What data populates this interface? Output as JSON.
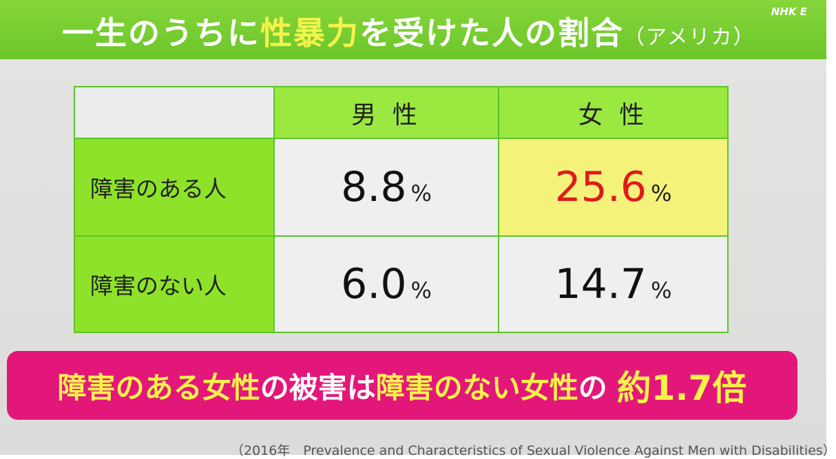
{
  "header": {
    "title": [
      {
        "text": "一生のうちに",
        "tone": "white"
      },
      {
        "text": "性暴力",
        "tone": "yellow"
      },
      {
        "text": "を受けた人の割合",
        "tone": "white"
      },
      {
        "text": "（アメリカ）",
        "tone": "small"
      }
    ],
    "logo": "NHK E"
  },
  "table": {
    "columns": [
      "男 性",
      "女 性"
    ],
    "rows": [
      {
        "label": "障害のある人",
        "cells": [
          {
            "value": "8.8",
            "unit": "%",
            "highlight": false
          },
          {
            "value": "25.6",
            "unit": "%",
            "highlight": true
          }
        ]
      },
      {
        "label": "障害のない人",
        "cells": [
          {
            "value": "6.0",
            "unit": "%",
            "highlight": false
          },
          {
            "value": "14.7",
            "unit": "%",
            "highlight": false
          }
        ]
      }
    ]
  },
  "banner": [
    {
      "text": "障害のある女性",
      "tone": "yellow"
    },
    {
      "text": "の被害は",
      "tone": "white"
    },
    {
      "text": "障害のない女性",
      "tone": "yellow"
    },
    {
      "text": "の",
      "tone": "white"
    },
    {
      "text": "約1.7倍",
      "tone": "big"
    }
  ],
  "source": "（2016年　Prevalence and Characteristics of Sexual Violence Against Men with Disabilities）"
}
